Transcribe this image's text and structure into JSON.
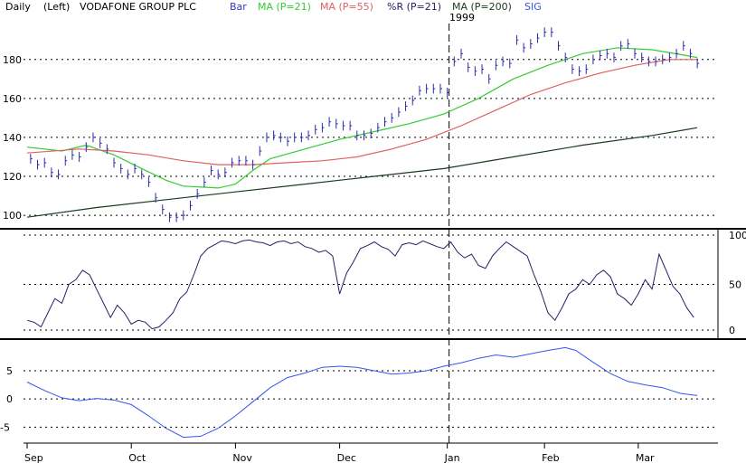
{
  "header": {
    "period": "Daily",
    "scale": "(Left)",
    "company": "VODAFONE GROUP PLC",
    "legend": [
      {
        "label": "Bar",
        "color": "#3333cc"
      },
      {
        "label": "MA (P=21)",
        "color": "#33cc33"
      },
      {
        "label": "MA (P=55)",
        "color": "#e06060"
      },
      {
        "label": "%R (P=21)",
        "color": "#222266"
      },
      {
        "label": "MA (P=200)",
        "color": "#1c3a1c"
      },
      {
        "label": "SIG",
        "color": "#3355ee"
      }
    ],
    "year_marker": "1999"
  },
  "chart_data": [
    {
      "type": "line",
      "panel": "price",
      "title": "VODAFONE GROUP PLC",
      "x_months": [
        "Sep",
        "Oct",
        "Nov",
        "Dec",
        "Jan",
        "Feb",
        "Mar"
      ],
      "ylim": [
        94,
        198
      ],
      "yticks": [
        100,
        120,
        140,
        160,
        180
      ],
      "grid": true,
      "bars": [
        [
          1,
          129
        ],
        [
          3,
          126
        ],
        [
          5,
          127
        ],
        [
          7,
          122
        ],
        [
          9,
          121
        ],
        [
          11,
          128
        ],
        [
          13,
          131
        ],
        [
          15,
          130
        ],
        [
          17,
          135
        ],
        [
          19,
          140
        ],
        [
          21,
          137
        ],
        [
          23,
          134
        ],
        [
          25,
          127
        ],
        [
          27,
          124
        ],
        [
          29,
          121
        ],
        [
          31,
          124
        ],
        [
          33,
          121
        ],
        [
          35,
          117
        ],
        [
          37,
          109
        ],
        [
          39,
          103
        ],
        [
          41,
          99
        ],
        [
          43,
          99
        ],
        [
          45,
          100
        ],
        [
          47,
          105
        ],
        [
          49,
          111
        ],
        [
          51,
          117
        ],
        [
          53,
          123
        ],
        [
          55,
          121
        ],
        [
          57,
          122
        ],
        [
          59,
          127
        ],
        [
          61,
          128
        ],
        [
          63,
          128
        ],
        [
          65,
          126
        ],
        [
          67,
          133
        ],
        [
          69,
          140
        ],
        [
          71,
          141
        ],
        [
          73,
          140
        ],
        [
          75,
          138
        ],
        [
          77,
          140
        ],
        [
          79,
          140
        ],
        [
          81,
          141
        ],
        [
          83,
          144
        ],
        [
          85,
          145
        ],
        [
          87,
          148
        ],
        [
          89,
          147
        ],
        [
          91,
          146
        ],
        [
          93,
          146
        ],
        [
          95,
          141
        ],
        [
          97,
          141
        ],
        [
          99,
          142
        ],
        [
          101,
          145
        ],
        [
          103,
          148
        ],
        [
          105,
          150
        ],
        [
          107,
          153
        ],
        [
          109,
          156
        ],
        [
          111,
          159
        ],
        [
          113,
          164
        ],
        [
          115,
          165
        ],
        [
          117,
          165
        ],
        [
          119,
          165
        ],
        [
          121,
          163
        ],
        [
          123,
          179
        ],
        [
          125,
          183
        ],
        [
          127,
          176
        ],
        [
          129,
          174
        ],
        [
          131,
          175
        ],
        [
          133,
          170
        ],
        [
          135,
          177
        ],
        [
          137,
          179
        ],
        [
          139,
          178
        ],
        [
          141,
          190
        ],
        [
          143,
          186
        ],
        [
          145,
          188
        ],
        [
          147,
          191
        ],
        [
          149,
          194
        ],
        [
          151,
          194
        ],
        [
          153,
          187
        ],
        [
          155,
          181
        ],
        [
          157,
          175
        ],
        [
          159,
          174
        ],
        [
          161,
          175
        ],
        [
          163,
          180
        ],
        [
          165,
          182
        ],
        [
          167,
          183
        ],
        [
          169,
          181
        ],
        [
          171,
          187
        ],
        [
          173,
          188
        ],
        [
          175,
          183
        ],
        [
          177,
          181
        ],
        [
          179,
          179
        ],
        [
          181,
          179
        ],
        [
          183,
          180
        ],
        [
          185,
          181
        ],
        [
          187,
          183
        ],
        [
          189,
          187
        ],
        [
          191,
          183
        ],
        [
          193,
          178
        ]
      ],
      "series": [
        {
          "name": "MA (P=21)",
          "color": "#33cc33",
          "points": [
            [
              0,
              135
            ],
            [
              10,
              133
            ],
            [
              17,
              136
            ],
            [
              25,
              131
            ],
            [
              33,
              124
            ],
            [
              40,
              118
            ],
            [
              45,
              115
            ],
            [
              55,
              114
            ],
            [
              60,
              116
            ],
            [
              65,
              123
            ],
            [
              70,
              129
            ],
            [
              80,
              134
            ],
            [
              90,
              139
            ],
            [
              100,
              143
            ],
            [
              110,
              147
            ],
            [
              120,
              152
            ],
            [
              130,
              160
            ],
            [
              140,
              170
            ],
            [
              150,
              177
            ],
            [
              160,
              183
            ],
            [
              170,
              186
            ],
            [
              180,
              185
            ],
            [
              190,
              182
            ],
            [
              193,
              181
            ]
          ]
        },
        {
          "name": "MA (P=55)",
          "color": "#e06060",
          "points": [
            [
              0,
              132
            ],
            [
              15,
              134
            ],
            [
              25,
              133
            ],
            [
              35,
              131
            ],
            [
              45,
              128
            ],
            [
              55,
              126
            ],
            [
              65,
              126
            ],
            [
              75,
              127
            ],
            [
              85,
              128
            ],
            [
              95,
              130
            ],
            [
              105,
              134
            ],
            [
              115,
              139
            ],
            [
              125,
              146
            ],
            [
              135,
              154
            ],
            [
              145,
              162
            ],
            [
              155,
              168
            ],
            [
              165,
              173
            ],
            [
              175,
              177
            ],
            [
              185,
              180
            ],
            [
              193,
              180
            ]
          ]
        },
        {
          "name": "MA (P=200)",
          "color": "#1c3a1c",
          "points": [
            [
              0,
              99
            ],
            [
              20,
              104
            ],
            [
              40,
              108
            ],
            [
              60,
              112
            ],
            [
              80,
              116
            ],
            [
              100,
              120
            ],
            [
              120,
              124
            ],
            [
              140,
              130
            ],
            [
              160,
              136
            ],
            [
              180,
              141
            ],
            [
              193,
              145
            ]
          ]
        }
      ]
    },
    {
      "type": "line",
      "panel": "williams",
      "name": "%R (P=21)",
      "ylim": [
        -5,
        105
      ],
      "yticks": [
        0,
        50,
        100
      ],
      "values": [
        12,
        10,
        5,
        20,
        35,
        30,
        50,
        55,
        65,
        60,
        45,
        30,
        15,
        28,
        20,
        8,
        12,
        10,
        3,
        5,
        12,
        20,
        35,
        42,
        60,
        80,
        88,
        92,
        96,
        95,
        93,
        96,
        97,
        95,
        94,
        91,
        95,
        96,
        93,
        95,
        90,
        88,
        84,
        86,
        80,
        40,
        62,
        74,
        88,
        91,
        95,
        90,
        87,
        80,
        92,
        94,
        92,
        96,
        93,
        90,
        88,
        95,
        84,
        78,
        82,
        70,
        67,
        80,
        88,
        95,
        90,
        85,
        80,
        60,
        42,
        20,
        12,
        25,
        40,
        45,
        55,
        50,
        60,
        65,
        58,
        40,
        35,
        28,
        40,
        55,
        45,
        82,
        65,
        48,
        40,
        25,
        15
      ]
    },
    {
      "type": "line",
      "panel": "sig",
      "name": "SIG",
      "ylim": [
        -7.5,
        9.8
      ],
      "yticks": [
        -5,
        0,
        5
      ],
      "points": [
        [
          0,
          3.0
        ],
        [
          5,
          1.5
        ],
        [
          10,
          0.2
        ],
        [
          15,
          -0.3
        ],
        [
          20,
          0.1
        ],
        [
          25,
          -0.2
        ],
        [
          30,
          -1.0
        ],
        [
          35,
          -3.0
        ],
        [
          40,
          -5.2
        ],
        [
          45,
          -6.8
        ],
        [
          50,
          -6.6
        ],
        [
          55,
          -5.2
        ],
        [
          60,
          -3.0
        ],
        [
          65,
          -0.5
        ],
        [
          70,
          2.0
        ],
        [
          75,
          3.8
        ],
        [
          80,
          4.6
        ],
        [
          85,
          5.6
        ],
        [
          90,
          5.8
        ],
        [
          95,
          5.6
        ],
        [
          100,
          5.0
        ],
        [
          105,
          4.4
        ],
        [
          110,
          4.6
        ],
        [
          115,
          5.0
        ],
        [
          120,
          5.8
        ],
        [
          125,
          6.4
        ],
        [
          130,
          7.2
        ],
        [
          135,
          7.8
        ],
        [
          140,
          7.4
        ],
        [
          145,
          8.0
        ],
        [
          150,
          8.6
        ],
        [
          155,
          9.1
        ],
        [
          158,
          8.6
        ],
        [
          163,
          6.5
        ],
        [
          168,
          4.5
        ],
        [
          173,
          3.1
        ],
        [
          178,
          2.5
        ],
        [
          183,
          2.0
        ],
        [
          188,
          1.0
        ],
        [
          193,
          0.6
        ]
      ]
    }
  ]
}
